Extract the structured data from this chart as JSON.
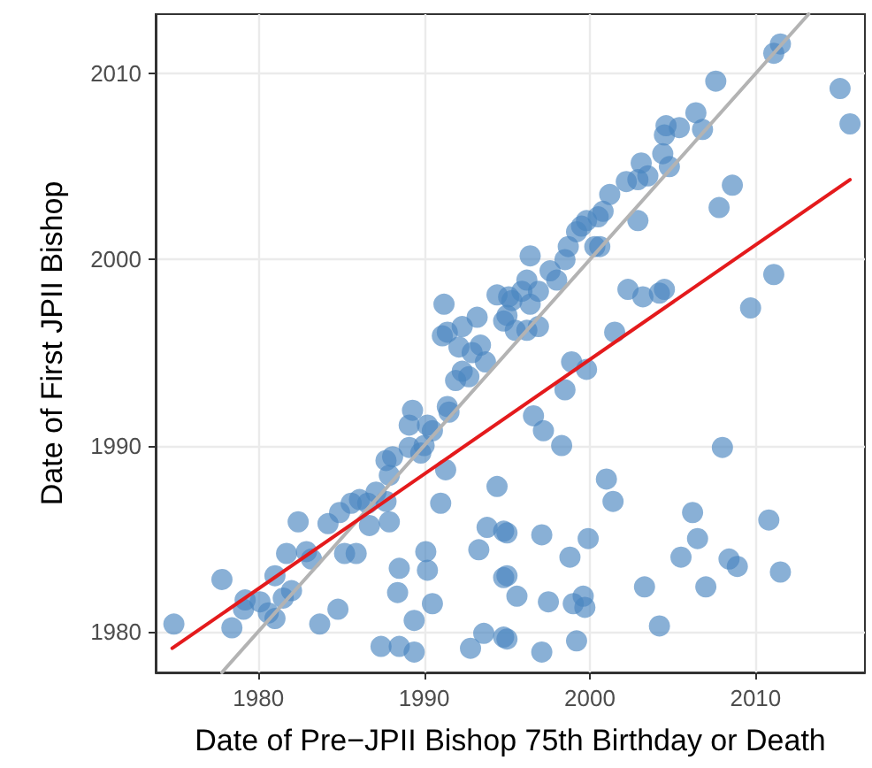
{
  "chart_data": {
    "type": "scatter",
    "xlabel": "Date of Pre−JPII Bishop 75th Birthday or Death",
    "ylabel": "Date of First JPII Bishop",
    "xlim": [
      1973.8,
      2016.6
    ],
    "ylim": [
      1977.8,
      2013.2
    ],
    "xticks": [
      1980,
      1990,
      2000,
      2010
    ],
    "yticks": [
      1980,
      1990,
      2000,
      2010
    ],
    "grid": true,
    "marker": "circle",
    "series": [
      {
        "type": "scatter",
        "color": "#4a86c0",
        "x": [
          1974.9,
          1977.8,
          1978.4,
          1979.2,
          1979.1,
          1980.1,
          1980.6,
          1981.0,
          1981.0,
          1981.5,
          1982.0,
          1981.7,
          1982.4,
          1982.9,
          1983.2,
          1983.7,
          1984.8,
          1984.2,
          1984.9,
          1985.2,
          1985.9,
          1985.6,
          1986.1,
          1986.7,
          1987.9,
          1987.4,
          1988.5,
          1989.4,
          1988.4,
          1988.5,
          1989.4,
          1990.1,
          1990.2,
          1990.5,
          1992.8,
          1993.6,
          1994.8,
          1993.3,
          1993.8,
          1994.8,
          1994.8,
          1994.4,
          1991.0,
          1991.3,
          1987.7,
          1987.9,
          1988.1,
          1989.1,
          1989.8,
          1990.0,
          1990.5,
          1990.2,
          1989.1,
          1989.3,
          1991.5,
          1991.4,
          1992.3,
          1992.7,
          1991.9,
          1992.9,
          1992.1,
          1993.4,
          1993.7,
          1991.1,
          1987.1,
          1986.6,
          1987.7,
          1991.2,
          1991.4,
          1994.4,
          1994.8,
          1995.1,
          1993.2,
          1992.3,
          1998.9,
          1999.8,
          1998.5,
          1996.6,
          1997.2,
          1998.3,
          2008.0,
          2001.0,
          2001.4,
          2006.2,
          2006.5,
          2005.5,
          2010.8,
          2008.4,
          2008.9,
          2011.5,
          1997.1,
          1999.9,
          1998.8,
          1995.0,
          1995.0,
          1995.6,
          1997.5,
          1999.0,
          1999.6,
          1999.7,
          2003.3,
          2007.0,
          2004.2,
          1995.0,
          1997.1,
          1999.2,
          2011.5,
          2011.1,
          2007.6,
          2015.1,
          2015.7,
          2006.4,
          2006.8,
          2005.4,
          2004.6,
          2004.5,
          2004.4,
          2004.8,
          2003.1,
          2003.5,
          2002.9,
          2002.2,
          2001.2,
          2000.8,
          2000.5,
          1999.8,
          1999.5,
          1999.2,
          2000.3,
          2000.6,
          1998.7,
          1998.5,
          1996.4,
          1997.6,
          1998.0,
          1996.2,
          1996.9,
          1995.9,
          1995.3,
          1996.4,
          1995.0,
          1995.5,
          1996.2,
          1996.9,
          2001.5,
          2002.9,
          2007.8,
          2008.6,
          2011.1,
          2009.7,
          2002.3,
          2003.2,
          2004.2,
          2004.5
        ],
        "values": [
          1980.4,
          1982.8,
          1980.2,
          1981.7,
          1981.2,
          1981.6,
          1981.0,
          1980.7,
          1983.0,
          1981.8,
          1982.2,
          1984.2,
          1985.9,
          1984.3,
          1983.9,
          1980.4,
          1981.2,
          1985.8,
          1986.4,
          1984.2,
          1984.2,
          1986.9,
          1987.1,
          1985.7,
          1985.9,
          1979.2,
          1979.2,
          1978.9,
          1982.1,
          1983.4,
          1980.6,
          1984.3,
          1983.3,
          1981.5,
          1979.1,
          1979.9,
          1979.7,
          1984.4,
          1985.6,
          1985.4,
          1982.9,
          1987.8,
          1986.9,
          1988.7,
          1989.2,
          1988.4,
          1989.4,
          1989.9,
          1989.6,
          1990.0,
          1990.8,
          1991.1,
          1991.1,
          1991.9,
          1991.8,
          1992.1,
          1994.0,
          1993.7,
          1993.5,
          1995.0,
          1995.3,
          1995.4,
          1994.5,
          1995.9,
          1987.5,
          1986.9,
          1987.0,
          1997.6,
          1996.1,
          1998.1,
          1996.7,
          1998.0,
          1996.9,
          1996.4,
          1994.5,
          1994.1,
          1993.0,
          1991.6,
          1990.8,
          1990.0,
          1989.9,
          1988.2,
          1987.0,
          1986.4,
          1985.0,
          1984.0,
          1986.0,
          1983.9,
          1983.5,
          1983.2,
          1985.2,
          1985.0,
          1984.0,
          1985.3,
          1983.0,
          1981.9,
          1981.6,
          1981.5,
          1981.9,
          1981.3,
          1982.4,
          1982.4,
          1980.3,
          1979.6,
          1978.9,
          1979.5,
          2011.6,
          2011.1,
          2009.6,
          2009.2,
          2007.3,
          2007.9,
          2007.0,
          2007.1,
          2007.2,
          2006.7,
          2005.7,
          2005.0,
          2005.2,
          2004.5,
          2004.3,
          2004.2,
          2003.5,
          2002.6,
          2002.3,
          2002.1,
          2001.8,
          2001.5,
          2000.7,
          2000.7,
          2000.7,
          2000.0,
          2000.2,
          1999.4,
          1998.9,
          1998.9,
          1998.3,
          1998.3,
          1997.8,
          1997.6,
          1997.0,
          1996.2,
          1996.2,
          1996.4,
          1996.1,
          2002.1,
          2002.8,
          2004.0,
          1999.2,
          1997.4,
          1998.4,
          1998.0,
          1998.2,
          1998.4
        ]
      },
      {
        "type": "line",
        "color": "#b3b3b3",
        "marker": "none",
        "x": [
          1977.8,
          2013.2
        ],
        "values": [
          1977.8,
          2013.2
        ]
      },
      {
        "type": "line",
        "color": "#e41a1c",
        "marker": "none",
        "x": [
          1974.8,
          2015.7
        ],
        "values": [
          1979.1,
          2004.3
        ]
      }
    ]
  }
}
